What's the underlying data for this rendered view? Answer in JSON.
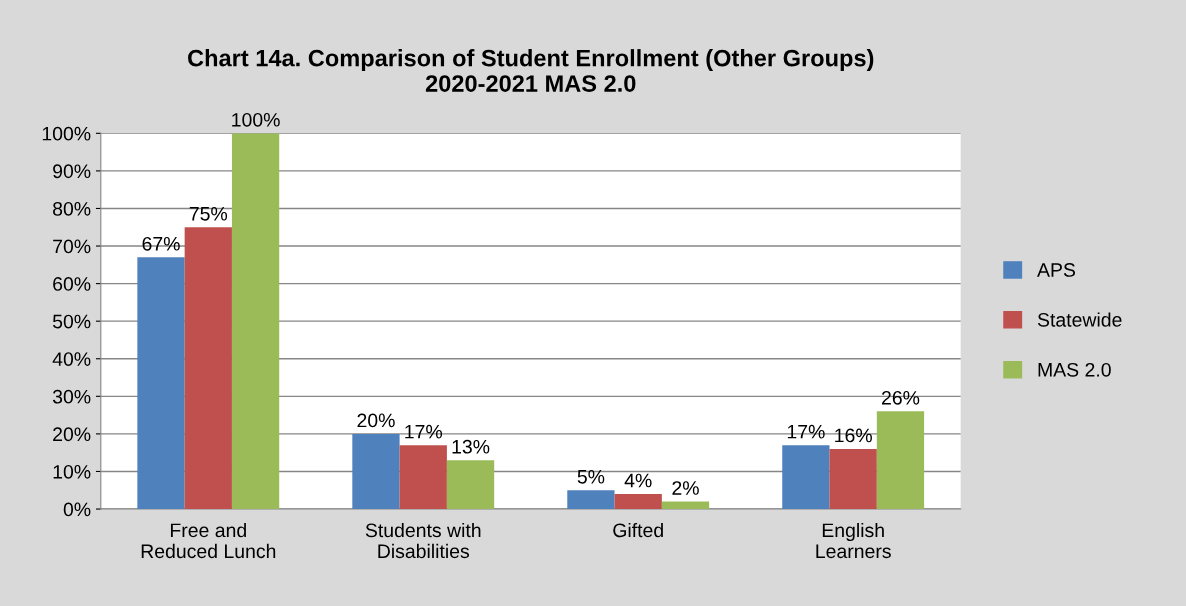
{
  "chart_data": {
    "type": "bar",
    "title": "Chart 14a. Comparison of Student Enrollment (Other Groups)\n2020-2021 MAS 2.0",
    "categories": [
      "Free and Reduced Lunch",
      "Students with Disabilities",
      "Gifted",
      "English Learners"
    ],
    "series": [
      {
        "name": "APS",
        "color": "#4f81bd",
        "values": [
          67,
          20,
          5,
          17
        ],
        "value_labels": [
          "67%",
          "20%",
          "5%",
          "17%"
        ]
      },
      {
        "name": "Statewide",
        "color": "#c0504d",
        "values": [
          75,
          17,
          4,
          16
        ],
        "value_labels": [
          "75%",
          "17%",
          "4%",
          "16%"
        ]
      },
      {
        "name": "MAS 2.0",
        "color": "#9bbb59",
        "values": [
          100,
          13,
          2,
          26
        ],
        "value_labels": [
          "100%",
          "13%",
          "2%",
          "26%"
        ]
      }
    ],
    "ylim": [
      0,
      100
    ],
    "yticks": [
      {
        "value": 0,
        "label": "0%"
      },
      {
        "value": 10,
        "label": "10%"
      },
      {
        "value": 20,
        "label": "20%"
      },
      {
        "value": 30,
        "label": "30%"
      },
      {
        "value": 40,
        "label": "40%"
      },
      {
        "value": 50,
        "label": "50%"
      },
      {
        "value": 60,
        "label": "60%"
      },
      {
        "value": 70,
        "label": "70%"
      },
      {
        "value": 80,
        "label": "80%"
      },
      {
        "value": 90,
        "label": "90%"
      },
      {
        "value": 100,
        "label": "100%"
      }
    ],
    "grid": "y",
    "legend": "right"
  }
}
